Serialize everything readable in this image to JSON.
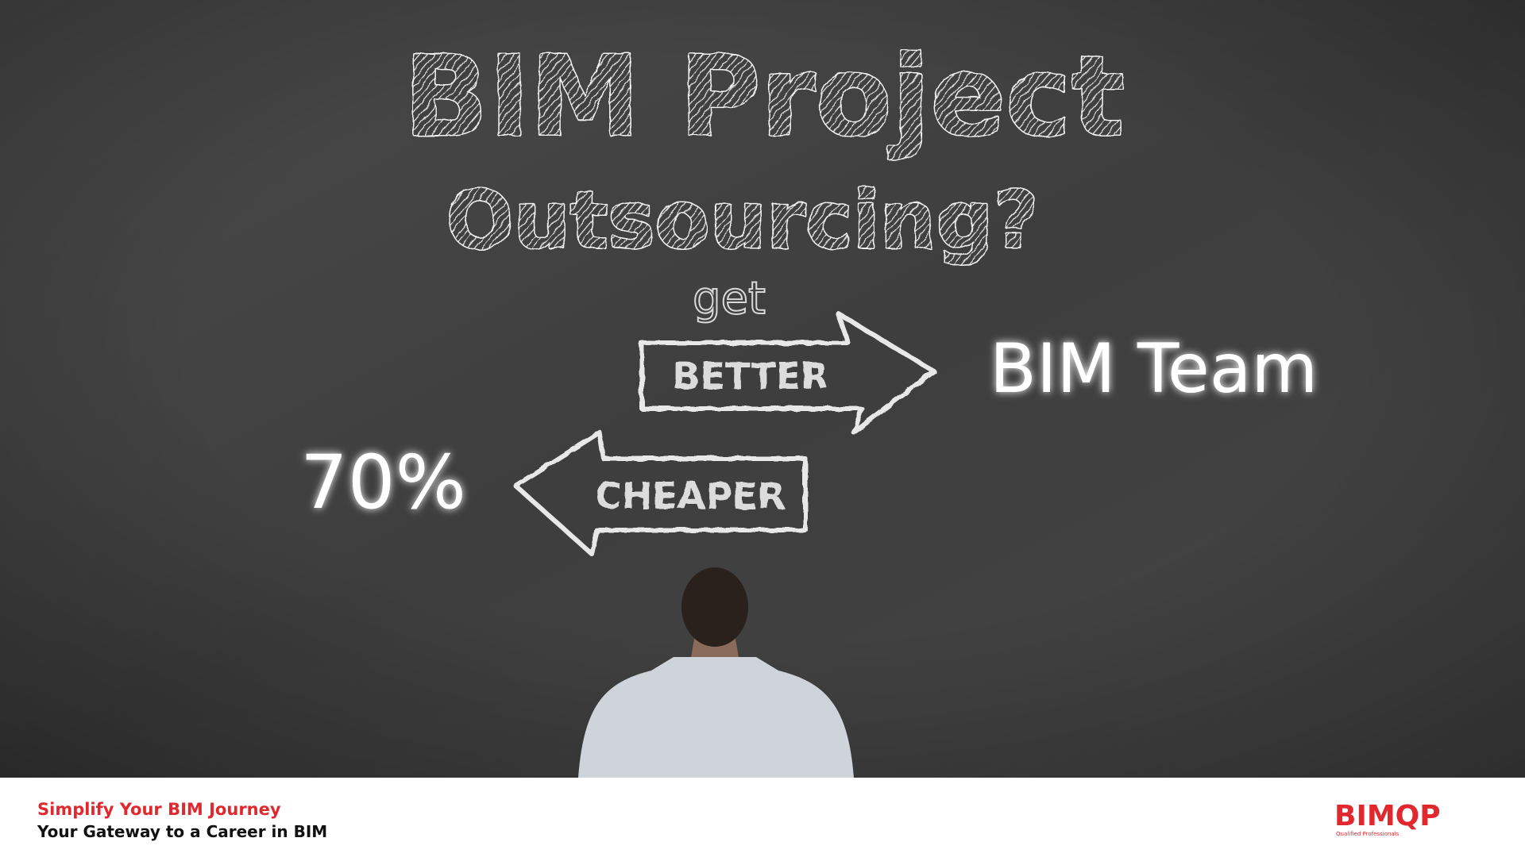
{
  "headline": {
    "line1": "BIM Project",
    "line2": "Outsourcing?"
  },
  "connector": "get",
  "arrows": [
    {
      "label": "BETTER",
      "target": "BIM Team"
    },
    {
      "label": "CHEAPER",
      "target": "70%"
    }
  ],
  "footer": {
    "tagline": "Simplify Your BIM Journey",
    "subtitle": "Your Gateway to a Career in BIM"
  },
  "logo": {
    "name": "BIMQP",
    "caption": "Qualified Professionals"
  }
}
